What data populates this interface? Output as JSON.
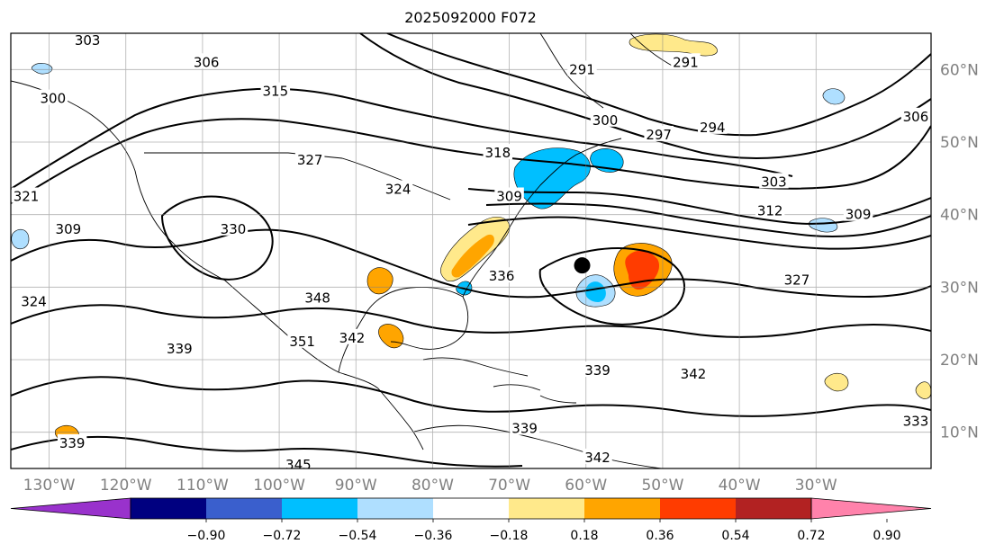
{
  "title": "2025092000 F072",
  "map": {
    "lon_range": [
      -135,
      -15
    ],
    "lat_range": [
      5,
      65
    ],
    "lon_ticks": [
      {
        "lon": -130,
        "label": "130°W"
      },
      {
        "lon": -120,
        "label": "120°W"
      },
      {
        "lon": -110,
        "label": "110°W"
      },
      {
        "lon": -100,
        "label": "100°W"
      },
      {
        "lon": -90,
        "label": "90°W"
      },
      {
        "lon": -80,
        "label": "80°W"
      },
      {
        "lon": -70,
        "label": "70°W"
      },
      {
        "lon": -60,
        "label": "60°W"
      },
      {
        "lon": -50,
        "label": "50°W"
      },
      {
        "lon": -40,
        "label": "40°W"
      },
      {
        "lon": -30,
        "label": "30°W"
      }
    ],
    "lat_ticks": [
      {
        "lat": 60,
        "label": "60°N"
      },
      {
        "lat": 50,
        "label": "50°N"
      },
      {
        "lat": 40,
        "label": "40°N"
      },
      {
        "lat": 30,
        "label": "30°N"
      },
      {
        "lat": 20,
        "label": "20°N"
      },
      {
        "lat": 10,
        "label": "10°N"
      }
    ],
    "grid": true,
    "contour_color": "#000000",
    "contour_labels": [
      {
        "text": "303",
        "lon": -125.0,
        "lat": 64.0
      },
      {
        "text": "306",
        "lon": -109.5,
        "lat": 61.0
      },
      {
        "text": "300",
        "lon": -129.5,
        "lat": 56.0
      },
      {
        "text": "315",
        "lon": -100.5,
        "lat": 57.0
      },
      {
        "text": "327",
        "lon": -96.0,
        "lat": 47.5
      },
      {
        "text": "324",
        "lon": -84.5,
        "lat": 43.5
      },
      {
        "text": "321",
        "lon": -133.0,
        "lat": 42.5
      },
      {
        "text": "309",
        "lon": -127.5,
        "lat": 38.0
      },
      {
        "text": "330",
        "lon": -106.0,
        "lat": 38.0
      },
      {
        "text": "318",
        "lon": -71.5,
        "lat": 48.5
      },
      {
        "text": "291",
        "lon": -60.5,
        "lat": 60.0
      },
      {
        "text": "291",
        "lon": -47.0,
        "lat": 61.0
      },
      {
        "text": "300",
        "lon": -57.5,
        "lat": 53.0
      },
      {
        "text": "297",
        "lon": -50.5,
        "lat": 51.0
      },
      {
        "text": "294",
        "lon": -43.5,
        "lat": 52.0
      },
      {
        "text": "303",
        "lon": -35.5,
        "lat": 44.5
      },
      {
        "text": "312",
        "lon": -36.0,
        "lat": 40.5
      },
      {
        "text": "309",
        "lon": -24.5,
        "lat": 40.0
      },
      {
        "text": "306",
        "lon": -17.0,
        "lat": 53.5
      },
      {
        "text": "309",
        "lon": -70.0,
        "lat": 42.5
      },
      {
        "text": "336",
        "lon": -71.0,
        "lat": 31.5
      },
      {
        "text": "327",
        "lon": -32.5,
        "lat": 31.0
      },
      {
        "text": "348",
        "lon": -95.0,
        "lat": 28.5
      },
      {
        "text": "324",
        "lon": -132.0,
        "lat": 28.0
      },
      {
        "text": "342",
        "lon": -90.5,
        "lat": 23.0
      },
      {
        "text": "351",
        "lon": -97.0,
        "lat": 22.5
      },
      {
        "text": "339",
        "lon": -113.0,
        "lat": 21.5
      },
      {
        "text": "342",
        "lon": -46.0,
        "lat": 18.0
      },
      {
        "text": "339",
        "lon": -58.5,
        "lat": 18.5
      },
      {
        "text": "339",
        "lon": -68.0,
        "lat": 10.5
      },
      {
        "text": "339",
        "lon": -127.0,
        "lat": 8.5
      },
      {
        "text": "333",
        "lon": -17.0,
        "lat": 11.5
      },
      {
        "text": "345",
        "lon": -97.5,
        "lat": 5.5
      },
      {
        "text": "342",
        "lon": -58.5,
        "lat": 6.5
      }
    ],
    "marker": {
      "lon": -60.5,
      "lat": 33.0
    }
  },
  "colorbar": {
    "ticks": [
      "−0.90",
      "−0.72",
      "−0.54",
      "−0.36",
      "−0.18",
      "0.18",
      "0.36",
      "0.54",
      "0.72",
      "0.90"
    ],
    "colors": [
      "#9932cc",
      "#000080",
      "#3a5fcd",
      "#00bfff",
      "#afdfff",
      "#ffffff",
      "#ffe98b",
      "#ffa500",
      "#ff3c00",
      "#b22222",
      "#ff82ab"
    ]
  }
}
